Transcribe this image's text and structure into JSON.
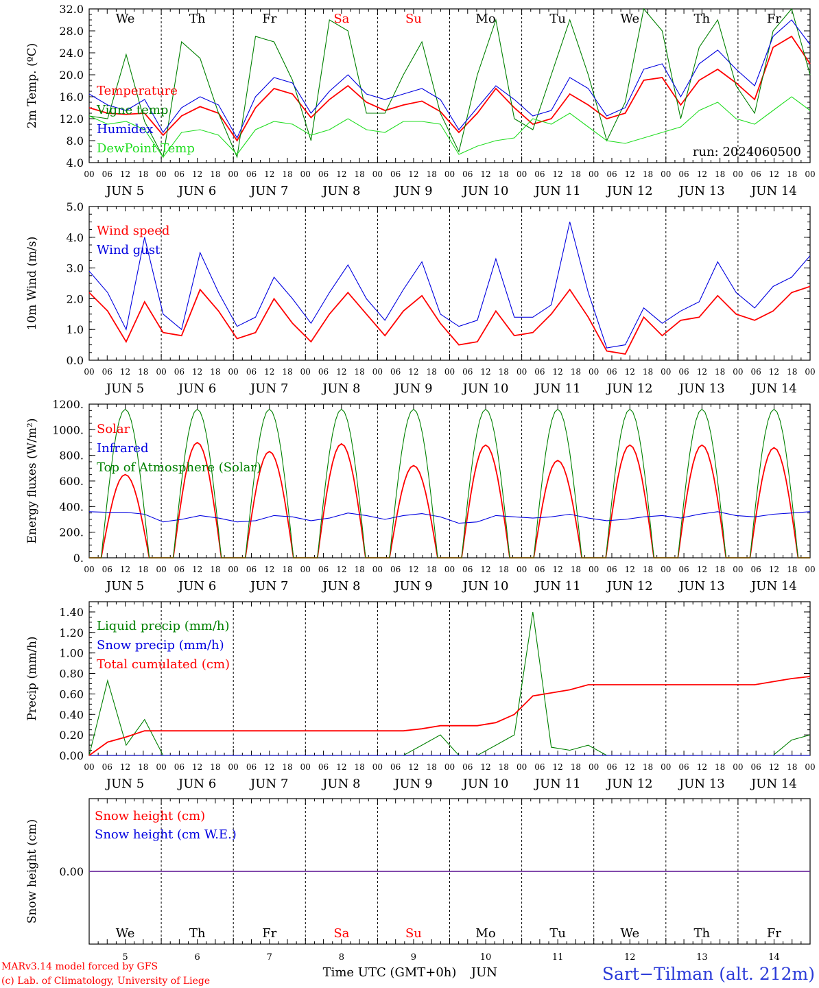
{
  "figure": {
    "run": "run: 2024060500",
    "location": "Sart−Tilman (alt. 212m)",
    "credit_1": "MARv3.14 model forced by GFS",
    "credit_2": "(c) Lab. of Climatology, University of Liege",
    "xlabel": "Time UTC (GMT+0h)",
    "month": "JUN",
    "colors": {
      "red": "#ff0000",
      "blue": "#0000e0",
      "green": "#008000",
      "lightgreen": "#22dd22",
      "purple": "#7030a0",
      "weekend": "#ff0000"
    }
  },
  "chart_data": [
    {
      "type": "line",
      "id": "temperature",
      "ylabel": "2m Temp. (ºC)",
      "ylim": [
        4,
        32
      ],
      "yticks": [
        "4.0",
        "8.0",
        "12.0",
        "16.0",
        "20.0",
        "24.0",
        "28.0",
        "32.0"
      ],
      "weekdays": [
        {
          "label": "We",
          "weekend": false
        },
        {
          "label": "Th",
          "weekend": false
        },
        {
          "label": "Fr",
          "weekend": false
        },
        {
          "label": "Sa",
          "weekend": true
        },
        {
          "label": "Su",
          "weekend": true
        },
        {
          "label": "Mo",
          "weekend": false
        },
        {
          "label": "Tu",
          "weekend": false
        },
        {
          "label": "We",
          "weekend": false
        },
        {
          "label": "Th",
          "weekend": false
        },
        {
          "label": "Fr",
          "weekend": false
        }
      ],
      "hour_labels": [
        "00",
        "06",
        "12",
        "18"
      ],
      "day_labels": [
        "JUN   5",
        "JUN   6",
        "JUN   7",
        "JUN   8",
        "JUN   9",
        "JUN  10",
        "JUN  11",
        "JUN  12",
        "JUN  13",
        "JUN  14"
      ],
      "hours": [
        0,
        6,
        12,
        18,
        24,
        30,
        36,
        42,
        48,
        54,
        60,
        66,
        72,
        78,
        84,
        90,
        96,
        102,
        108,
        114,
        120,
        126,
        132,
        138,
        144,
        150,
        156,
        162,
        168,
        174,
        180,
        186,
        192,
        198,
        204,
        210,
        216,
        222,
        228,
        234,
        240
      ],
      "series": [
        {
          "name": "Temperature",
          "color": "#ff0000",
          "values": [
            14,
            13,
            12.8,
            13,
            9,
            12.5,
            14.2,
            13,
            8,
            14,
            17.5,
            16.5,
            12.2,
            15.5,
            18,
            15,
            13.5,
            14.5,
            15.2,
            13.3,
            9.5,
            13,
            17.5,
            14,
            11,
            12,
            16.5,
            14.5,
            12,
            13,
            19,
            19.5,
            14.5,
            19,
            21,
            18.5,
            15.5,
            25,
            27,
            22
          ]
        },
        {
          "name": "Vigne temp",
          "color": "#008000",
          "values": [
            12.5,
            12,
            23.7,
            11.5,
            5,
            26,
            23,
            13,
            5,
            27,
            26,
            19,
            8,
            30,
            28,
            13,
            13,
            20,
            26,
            13,
            6,
            20,
            30,
            12,
            10,
            20,
            30,
            20,
            8,
            15,
            32,
            28,
            12,
            25,
            30,
            18,
            13,
            28,
            33,
            20
          ]
        },
        {
          "name": "Humidex",
          "color": "#0000e0",
          "values": [
            16.5,
            14.5,
            13.5,
            15.5,
            9.5,
            14,
            16,
            14.5,
            8.5,
            16,
            19.5,
            18.5,
            13,
            17,
            20,
            16.5,
            15.5,
            16.5,
            17.5,
            15.5,
            10,
            14,
            18,
            15.5,
            12.5,
            13.5,
            19.5,
            17.5,
            12.5,
            14,
            21,
            22,
            16,
            22,
            24.5,
            21,
            18,
            27,
            30,
            25.5
          ]
        },
        {
          "name": "DewPoint Temp",
          "color": "#22dd22",
          "values": [
            12.5,
            11,
            11.5,
            10,
            5,
            9.5,
            10,
            9,
            5.5,
            10,
            11.5,
            11,
            9,
            10,
            12,
            10,
            9.5,
            11.5,
            11.5,
            11,
            5.5,
            7,
            8,
            8.5,
            12,
            11,
            13,
            10.5,
            8,
            7.5,
            8.5,
            9.5,
            10.5,
            13.5,
            15,
            12,
            11,
            13.5,
            16,
            13.5
          ]
        }
      ]
    },
    {
      "type": "line",
      "id": "wind",
      "ylabel": "10m Wind (m/s)",
      "ylim": [
        0,
        5
      ],
      "yticks": [
        "0.0",
        "1.0",
        "2.0",
        "3.0",
        "4.0",
        "5.0"
      ],
      "series": [
        {
          "name": "Wind speed",
          "color": "#ff0000",
          "values": [
            2.2,
            1.6,
            0.6,
            1.9,
            0.9,
            0.8,
            2.3,
            1.6,
            0.7,
            0.9,
            2.0,
            1.2,
            0.6,
            1.5,
            2.2,
            1.5,
            0.8,
            1.6,
            2.1,
            1.2,
            0.5,
            0.6,
            1.6,
            0.8,
            0.9,
            1.5,
            2.3,
            1.4,
            0.3,
            0.2,
            1.4,
            0.8,
            1.3,
            1.4,
            2.1,
            1.5,
            1.3,
            1.6,
            2.2,
            2.4
          ]
        },
        {
          "name": "Wind gust",
          "color": "#0000e0",
          "values": [
            2.9,
            2.2,
            1.0,
            4.0,
            1.5,
            1.0,
            3.5,
            2.2,
            1.1,
            1.4,
            2.7,
            2.0,
            1.2,
            2.2,
            3.1,
            2.0,
            1.3,
            2.3,
            3.2,
            1.5,
            1.1,
            1.3,
            3.3,
            1.4,
            1.4,
            1.8,
            4.5,
            2.2,
            0.4,
            0.5,
            1.7,
            1.2,
            1.6,
            1.9,
            3.2,
            2.2,
            1.7,
            2.4,
            2.7,
            3.4
          ]
        }
      ]
    },
    {
      "type": "line",
      "id": "energy",
      "ylabel": "Energy fluxes (W/m²)",
      "ylim": [
        0,
        1200
      ],
      "yticks": [
        "0.",
        "200.",
        "400.",
        "600.",
        "800.",
        "1000.",
        "1200."
      ],
      "series": [
        {
          "name": "Solar",
          "color": "#ff0000",
          "peaks": [
            650,
            900,
            830,
            890,
            720,
            880,
            760,
            880,
            880,
            860
          ]
        },
        {
          "name": "Infrared",
          "color": "#0000e0",
          "values": [
            360,
            355,
            355,
            340,
            280,
            300,
            330,
            310,
            280,
            290,
            330,
            320,
            290,
            310,
            350,
            330,
            300,
            330,
            345,
            320,
            270,
            280,
            330,
            320,
            310,
            320,
            340,
            310,
            290,
            300,
            320,
            330,
            310,
            340,
            360,
            330,
            320,
            340,
            350,
            360
          ]
        },
        {
          "name": "Top of Atmosphere (Solar)",
          "color": "#008000",
          "peaks": [
            1160,
            1160,
            1160,
            1160,
            1160,
            1160,
            1160,
            1160,
            1160,
            1160
          ]
        }
      ]
    },
    {
      "type": "line",
      "id": "precip",
      "ylabel": "Precip (mm/h)",
      "ylim": [
        0,
        1.5
      ],
      "yticks": [
        "0.00",
        "0.20",
        "0.40",
        "0.60",
        "0.80",
        "1.00",
        "1.20",
        "1.40"
      ],
      "series": [
        {
          "name": "Liquid precip (mm/h)",
          "color": "#008000",
          "values": [
            0,
            0.73,
            0.1,
            0.35,
            0,
            0,
            0,
            0,
            0,
            0,
            0,
            0,
            0,
            0,
            0,
            0,
            0,
            0,
            0.1,
            0.2,
            0,
            0,
            0.1,
            0.2,
            1.4,
            0.08,
            0.05,
            0.1,
            0,
            0,
            0,
            0,
            0,
            0,
            0,
            0,
            0,
            0,
            0.15,
            0.2
          ]
        },
        {
          "name": "Snow precip (mm/h)",
          "color": "#0000e0",
          "values": [
            0,
            0,
            0,
            0,
            0,
            0,
            0,
            0,
            0,
            0,
            0,
            0,
            0,
            0,
            0,
            0,
            0,
            0,
            0,
            0,
            0,
            0,
            0,
            0,
            0,
            0,
            0,
            0,
            0,
            0,
            0,
            0,
            0,
            0,
            0,
            0,
            0,
            0,
            0,
            0
          ]
        },
        {
          "name": "Total cumulated (cm)",
          "color": "#ff0000",
          "values": [
            0,
            0.13,
            0.18,
            0.24,
            0.24,
            0.24,
            0.24,
            0.24,
            0.24,
            0.24,
            0.24,
            0.24,
            0.24,
            0.24,
            0.24,
            0.24,
            0.24,
            0.24,
            0.26,
            0.29,
            0.29,
            0.29,
            0.32,
            0.4,
            0.58,
            0.61,
            0.64,
            0.69,
            0.69,
            0.69,
            0.69,
            0.69,
            0.69,
            0.69,
            0.69,
            0.69,
            0.69,
            0.72,
            0.75,
            0.77
          ]
        }
      ]
    },
    {
      "type": "line",
      "id": "snow",
      "ylabel": "Snow height (cm)",
      "ylim": [
        -1,
        1
      ],
      "yticks": [
        "0.00"
      ],
      "days_numbers": [
        "5",
        "6",
        "7",
        "8",
        "9",
        "10",
        "11",
        "12",
        "13",
        "14"
      ],
      "series": [
        {
          "name": "Snow height (cm)",
          "color": "#ff0000",
          "values": [
            0,
            0
          ]
        },
        {
          "name": "Snow height (cm W.E.)",
          "color": "#0000e0",
          "values": [
            0,
            0
          ]
        }
      ]
    }
  ]
}
